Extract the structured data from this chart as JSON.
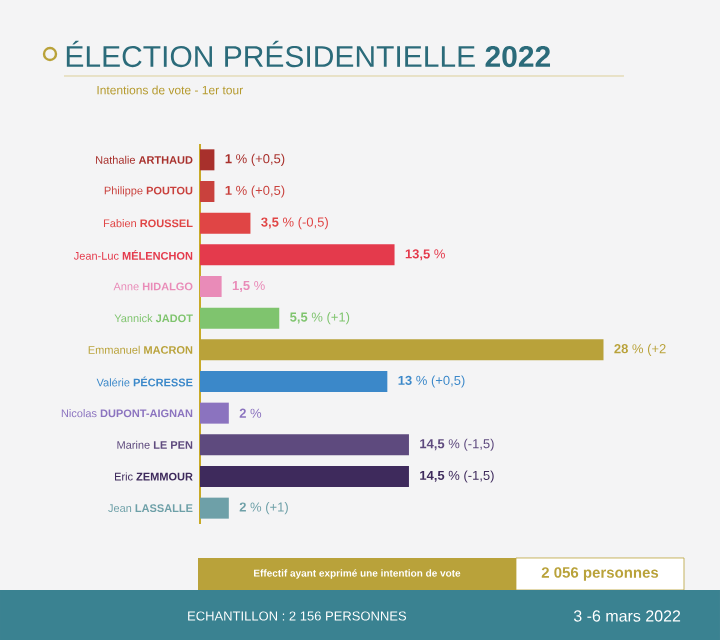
{
  "chart_data": {
    "type": "bar",
    "orientation": "horizontal",
    "title": "ÉLECTION PRÉSIDENTIELLE **2022**",
    "subtitle": "Intentions de vote - 1er tour",
    "categories": [
      "Nathalie **ARTHAUD**",
      "Philippe **POUTOU**",
      "Fabien **ROUSSEL**",
      "Jean-Luc **MÉLENCHON**",
      "Anne **HIDALGO**",
      "Yannick **JADOT**",
      "Emmanuel **MACRON**",
      "Valérie **PÉCRESSE**",
      "Nicolas **DUPONT-AIGNAN**",
      "Marine **LE PEN**",
      "Eric **ZEMMOUR**",
      "Jean **LASSALLE**"
    ],
    "values": [
      1,
      1,
      3.5,
      13.5,
      1.5,
      5.5,
      28,
      13,
      2,
      14.5,
      14.5,
      2
    ],
    "colors": [
      "#a8302c",
      "#c9413d",
      "#e04545",
      "#e43a4c",
      "#e98bb8",
      "#7fc46e",
      "#b9a23a",
      "#3b88c9",
      "#8b73bf",
      "#5e4a7e",
      "#3e2a5c",
      "#6ea0a8"
    ],
    "value_labels": [
      "**1** % (+0,5)",
      "**1** % (+0,5)",
      "**3,5** % (-0,5)",
      "**13,5** %",
      "**1,5** %",
      "**5,5** % (+1)",
      "**28** % (+2",
      "**13** % (+0,5)",
      "**2** %",
      "**14,5** % (-1,5)",
      "**14,5** % (-1,5)",
      "**2** % (+1)"
    ],
    "annotations": [
      "Effectif ayant exprimé une intention de vote",
      "2 056 personnes",
      "ECHANTILLON : 2 156 PERSONNES",
      "3 -6 mars 2022"
    ]
  }
}
